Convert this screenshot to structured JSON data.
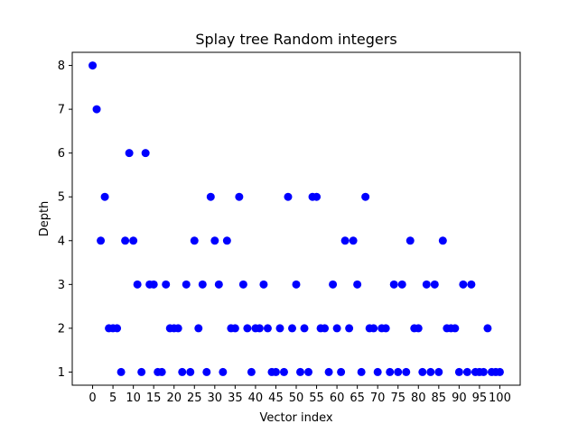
{
  "chart_data": {
    "type": "scatter",
    "title": "Splay tree Random integers",
    "xlabel": "Vector index",
    "ylabel": "Depth",
    "xlim": [
      -5,
      105
    ],
    "ylim": [
      0.7,
      8.3
    ],
    "xticks": [
      0,
      5,
      10,
      15,
      20,
      25,
      30,
      35,
      40,
      45,
      50,
      55,
      60,
      65,
      70,
      75,
      80,
      85,
      90,
      95,
      100
    ],
    "yticks": [
      1,
      2,
      3,
      4,
      5,
      6,
      7,
      8
    ],
    "marker_color": "#0000ff",
    "grid": false,
    "points": [
      [
        0,
        8
      ],
      [
        1,
        7
      ],
      [
        2,
        4
      ],
      [
        3,
        5
      ],
      [
        4,
        2
      ],
      [
        5,
        2
      ],
      [
        6,
        2
      ],
      [
        7,
        1
      ],
      [
        8,
        4
      ],
      [
        9,
        6
      ],
      [
        10,
        4
      ],
      [
        11,
        3
      ],
      [
        12,
        1
      ],
      [
        13,
        6
      ],
      [
        14,
        3
      ],
      [
        15,
        3
      ],
      [
        16,
        1
      ],
      [
        17,
        1
      ],
      [
        18,
        3
      ],
      [
        19,
        2
      ],
      [
        20,
        2
      ],
      [
        21,
        2
      ],
      [
        22,
        1
      ],
      [
        23,
        3
      ],
      [
        24,
        1
      ],
      [
        25,
        4
      ],
      [
        26,
        2
      ],
      [
        27,
        3
      ],
      [
        28,
        1
      ],
      [
        29,
        5
      ],
      [
        30,
        4
      ],
      [
        31,
        3
      ],
      [
        32,
        1
      ],
      [
        33,
        4
      ],
      [
        34,
        2
      ],
      [
        35,
        2
      ],
      [
        36,
        5
      ],
      [
        37,
        3
      ],
      [
        38,
        2
      ],
      [
        39,
        1
      ],
      [
        40,
        2
      ],
      [
        41,
        2
      ],
      [
        42,
        3
      ],
      [
        43,
        2
      ],
      [
        44,
        1
      ],
      [
        45,
        1
      ],
      [
        46,
        2
      ],
      [
        47,
        1
      ],
      [
        48,
        5
      ],
      [
        49,
        2
      ],
      [
        50,
        3
      ],
      [
        51,
        1
      ],
      [
        52,
        2
      ],
      [
        53,
        1
      ],
      [
        54,
        5
      ],
      [
        55,
        5
      ],
      [
        56,
        2
      ],
      [
        57,
        2
      ],
      [
        58,
        1
      ],
      [
        59,
        3
      ],
      [
        60,
        2
      ],
      [
        61,
        1
      ],
      [
        62,
        4
      ],
      [
        63,
        2
      ],
      [
        64,
        4
      ],
      [
        65,
        3
      ],
      [
        66,
        1
      ],
      [
        67,
        5
      ],
      [
        68,
        2
      ],
      [
        69,
        2
      ],
      [
        70,
        1
      ],
      [
        71,
        2
      ],
      [
        72,
        2
      ],
      [
        73,
        1
      ],
      [
        74,
        3
      ],
      [
        75,
        1
      ],
      [
        76,
        3
      ],
      [
        77,
        1
      ],
      [
        78,
        4
      ],
      [
        79,
        2
      ],
      [
        80,
        2
      ],
      [
        81,
        1
      ],
      [
        82,
        3
      ],
      [
        83,
        1
      ],
      [
        84,
        3
      ],
      [
        85,
        1
      ],
      [
        86,
        4
      ],
      [
        87,
        2
      ],
      [
        88,
        2
      ],
      [
        89,
        2
      ],
      [
        90,
        1
      ],
      [
        91,
        3
      ],
      [
        92,
        1
      ],
      [
        93,
        3
      ],
      [
        94,
        1
      ],
      [
        95,
        1
      ],
      [
        96,
        1
      ],
      [
        97,
        2
      ],
      [
        98,
        1
      ],
      [
        99,
        1
      ],
      [
        100,
        1
      ]
    ]
  }
}
